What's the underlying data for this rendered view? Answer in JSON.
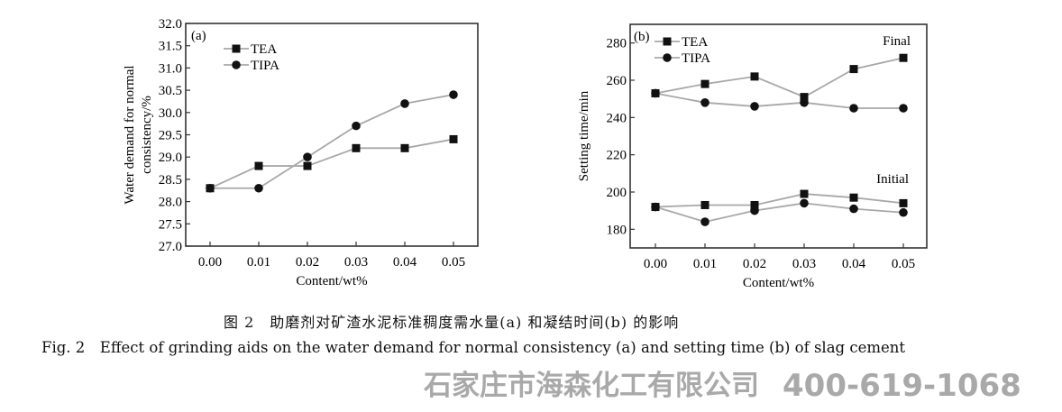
{
  "chart_data": [
    {
      "type": "line",
      "panel_label": "(a)",
      "xlabel": "Content/wt%",
      "ylabel_lines": [
        "Water demand for normal",
        "consistency/%"
      ],
      "x": [
        0.0,
        0.01,
        0.02,
        0.03,
        0.04,
        0.05
      ],
      "x_tick_labels": [
        "0.00",
        "0.01",
        "0.02",
        "0.03",
        "0.04",
        "0.05"
      ],
      "ylim": [
        27.0,
        32.0
      ],
      "y_ticks": [
        27.0,
        27.5,
        28.0,
        28.5,
        29.0,
        29.5,
        30.0,
        30.5,
        31.0,
        31.5,
        32.0
      ],
      "y_tick_labels": [
        "27.0",
        "27.5",
        "28.0",
        "28.5",
        "29.0",
        "29.5",
        "30.0",
        "30.5",
        "31.0",
        "31.5",
        "32.0"
      ],
      "legend": {
        "placement": "top-left",
        "entries": [
          {
            "name": "TEA",
            "marker": "square"
          },
          {
            "name": "TIPA",
            "marker": "circle"
          }
        ]
      },
      "series": [
        {
          "name": "TEA",
          "marker": "square",
          "values": [
            28.3,
            28.8,
            28.8,
            29.2,
            29.2,
            29.4
          ]
        },
        {
          "name": "TIPA",
          "marker": "circle",
          "values": [
            28.3,
            28.3,
            29.0,
            29.7,
            30.2,
            30.4
          ]
        }
      ],
      "annotations": []
    },
    {
      "type": "line",
      "panel_label": "(b)",
      "xlabel": "Content/wt%",
      "ylabel_lines": [
        "Setting time/min"
      ],
      "x": [
        0.0,
        0.01,
        0.02,
        0.03,
        0.04,
        0.05
      ],
      "x_tick_labels": [
        "0.00",
        "0.01",
        "0.02",
        "0.03",
        "0.04",
        "0.05"
      ],
      "ylim": [
        170,
        290
      ],
      "y_ticks": [
        180,
        200,
        220,
        240,
        260,
        280
      ],
      "y_tick_labels": [
        "180",
        "200",
        "220",
        "240",
        "260",
        "280"
      ],
      "legend": {
        "placement": "top-left",
        "entries": [
          {
            "name": "TEA",
            "marker": "square"
          },
          {
            "name": "TIPA",
            "marker": "circle"
          }
        ]
      },
      "series": [
        {
          "name": "TEA (Final)",
          "marker": "square",
          "values": [
            253,
            258,
            262,
            251,
            266,
            272
          ]
        },
        {
          "name": "TIPA (Final)",
          "marker": "circle",
          "values": [
            253,
            248,
            246,
            248,
            245,
            245
          ]
        },
        {
          "name": "TEA (Initial)",
          "marker": "square",
          "values": [
            192,
            193,
            193,
            199,
            197,
            194
          ]
        },
        {
          "name": "TIPA (Initial)",
          "marker": "circle",
          "values": [
            192,
            184,
            190,
            194,
            191,
            189
          ]
        }
      ],
      "annotations": [
        {
          "text": "Final",
          "at": [
            0.05,
            282
          ]
        },
        {
          "text": "Initial",
          "at": [
            0.05,
            207
          ]
        }
      ]
    }
  ],
  "caption": {
    "cn": "图 2　助磨剂对矿渣水泥标准稠度需水量(a) 和凝结时间(b) 的影响",
    "en": "Fig. 2　Effect of grinding aids on the water demand for normal consistency (a) and setting time (b) of slag cement"
  },
  "watermark": {
    "company": "石家庄市海森化工有限公司",
    "phone": "400-619-1068"
  },
  "colors": {
    "line": "#a8a8a8",
    "marker": "#111111",
    "axis": "#333333"
  }
}
